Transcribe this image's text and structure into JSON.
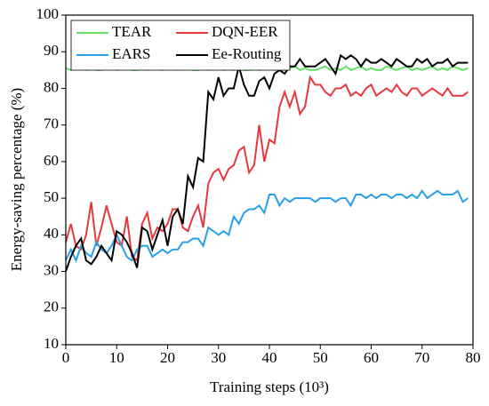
{
  "chart_data": {
    "type": "line",
    "x_label": "Training steps (10³)",
    "y_label": "Energy-saving percentage (%)",
    "x": [
      0,
      1,
      2,
      3,
      4,
      5,
      6,
      7,
      8,
      9,
      10,
      11,
      12,
      13,
      14,
      15,
      16,
      17,
      18,
      19,
      20,
      21,
      22,
      23,
      24,
      25,
      26,
      27,
      28,
      29,
      30,
      31,
      32,
      33,
      34,
      35,
      36,
      37,
      38,
      39,
      40,
      41,
      42,
      43,
      44,
      45,
      46,
      47,
      48,
      49,
      50,
      51,
      52,
      53,
      54,
      55,
      56,
      57,
      58,
      59,
      60,
      61,
      62,
      63,
      64,
      65,
      66,
      67,
      68,
      69,
      70,
      71,
      72,
      73,
      74,
      75,
      76,
      77,
      78,
      79
    ],
    "series": [
      {
        "name": "TEAR",
        "color": "#66e066",
        "values": [
          85.5,
          85,
          86,
          85.5,
          85,
          85.5,
          85,
          85,
          85.5,
          86,
          85,
          85.5,
          86,
          85,
          85,
          85.5,
          85,
          86,
          85.5,
          85,
          86,
          85.5,
          85,
          85.5,
          86,
          85,
          85,
          85.5,
          85,
          85.5,
          86,
          85,
          85.5,
          85,
          86,
          85,
          85,
          85.5,
          85,
          85.5,
          86,
          85,
          85.5,
          85,
          85.5,
          86,
          85,
          85.5,
          85,
          85,
          85.5,
          86,
          85,
          85.5,
          85,
          86,
          85,
          85.5,
          86,
          85,
          85.5,
          85,
          85,
          86,
          85.5,
          85,
          85.5,
          86,
          85,
          85.5,
          85,
          85.5,
          86,
          85,
          85.5,
          85,
          86,
          85.5,
          85,
          85.5
        ]
      },
      {
        "name": "DQN-EER",
        "color": "#e8383d",
        "values": [
          38,
          43,
          37,
          36,
          40,
          49,
          37,
          42,
          48,
          43,
          38,
          37,
          45,
          34,
          33,
          43,
          46,
          39,
          42,
          41,
          43,
          47,
          47,
          42,
          41,
          45,
          48,
          42,
          54,
          57,
          58,
          55,
          58,
          59,
          63,
          64,
          57,
          59,
          70,
          60,
          66,
          65,
          75,
          79,
          75,
          79,
          73,
          75,
          83,
          81,
          81,
          79,
          78,
          80,
          80,
          81,
          78,
          79,
          78,
          80,
          81,
          78,
          79,
          80,
          79,
          81,
          79,
          78,
          80,
          80,
          78,
          79,
          80,
          79,
          78,
          80,
          78,
          78,
          78,
          79
        ]
      },
      {
        "name": "EARS",
        "color": "#2a9fe8",
        "values": [
          33,
          36,
          33,
          37,
          35,
          34,
          38,
          36,
          35,
          37,
          40,
          37,
          34,
          33,
          36,
          37,
          37,
          34,
          35,
          36,
          35,
          36,
          36,
          38,
          38,
          39,
          39,
          37,
          42,
          41,
          40,
          41,
          40,
          45,
          43,
          46,
          47,
          47,
          48,
          46,
          51,
          51,
          48,
          50,
          49,
          50,
          50,
          50,
          50,
          49,
          50,
          50,
          50,
          49,
          50,
          50,
          48,
          51,
          51,
          50,
          51,
          50,
          51,
          51,
          50,
          51,
          51,
          50,
          51,
          50,
          52,
          50,
          51,
          52,
          51,
          51,
          51,
          52,
          49,
          50
        ]
      },
      {
        "name": "Ee-Routing",
        "color": "#000000",
        "values": [
          30,
          34,
          37,
          39,
          33,
          32,
          34,
          37,
          35,
          33,
          41,
          40,
          38,
          35,
          31,
          42,
          41,
          36,
          40,
          44,
          37,
          45,
          47,
          43,
          56,
          53,
          61,
          60,
          79,
          77,
          83,
          78,
          80,
          80,
          86,
          81,
          78,
          78,
          82,
          83,
          80,
          84,
          85,
          84,
          86,
          86,
          88,
          86,
          86,
          86,
          87,
          88,
          86,
          84,
          89,
          88,
          89,
          88,
          86,
          88,
          87,
          87,
          88,
          87,
          86,
          88,
          87,
          86,
          86,
          88,
          87,
          88,
          86,
          87,
          87,
          88,
          86,
          87,
          87,
          87
        ]
      }
    ],
    "xlim": [
      0,
      80
    ],
    "xticks": [
      0,
      10,
      20,
      30,
      40,
      50,
      60,
      70,
      80
    ],
    "ylim": [
      10,
      100
    ],
    "yticks": [
      10,
      20,
      30,
      40,
      50,
      60,
      70,
      80,
      90,
      100
    ],
    "legend": "upper left"
  }
}
